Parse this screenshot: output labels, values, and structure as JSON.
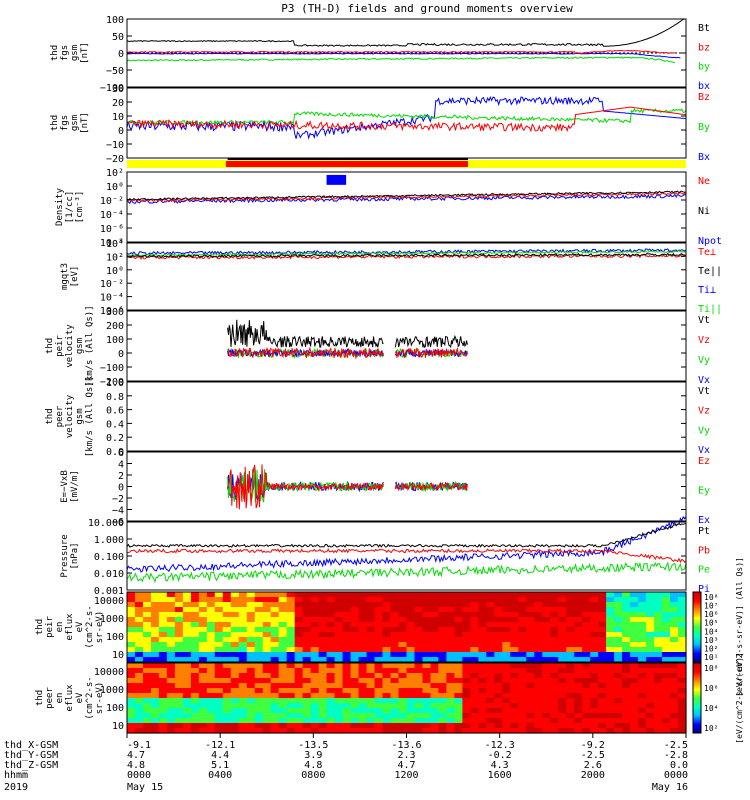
{
  "title": "P3 (TH-D) fields and ground moments overview",
  "colors": {
    "black": "#000000",
    "red": "#ff0000",
    "green": "#00dd00",
    "blue": "#0000ff",
    "yellow": "#ffff00"
  },
  "chart_data": [
    {
      "type": "line",
      "id": "p1",
      "ylabel": [
        "thd",
        "fgs",
        "gsm",
        "[nT]"
      ],
      "ylim": [
        -100,
        100
      ],
      "yticks": [
        "100",
        "50",
        "0",
        "−50",
        "−100"
      ],
      "legend": [
        {
          "name": "Bt",
          "color": "black"
        },
        {
          "name": "bz",
          "color": "red"
        },
        {
          "name": "by",
          "color": "green"
        },
        {
          "name": "bx",
          "color": "blue"
        }
      ]
    },
    {
      "type": "line",
      "id": "p2",
      "ylabel": [
        "thd",
        "fgs",
        "gsm",
        "[nT]"
      ],
      "ylim": [
        -25,
        30
      ],
      "yticks": [
        "30",
        "20",
        "10",
        "0",
        "−10",
        "−20"
      ],
      "legend": [
        {
          "name": "Bz",
          "color": "red"
        },
        {
          "name": "By",
          "color": "green"
        },
        {
          "name": "Bx",
          "color": "blue"
        }
      ]
    },
    {
      "type": "line",
      "id": "p3",
      "ylabel": [
        "Density",
        "[1/cc]",
        "[cm⁻³]"
      ],
      "yscale": "log",
      "yticks": [
        "10²",
        "10⁰",
        "10⁻²",
        "10⁻⁴",
        "10⁻⁶",
        "10⁻⁸"
      ],
      "legend": [
        {
          "name": "Ne",
          "color": "red"
        },
        {
          "name": "Ni",
          "color": "black"
        },
        {
          "name": "Npot",
          "color": "blue"
        }
      ]
    },
    {
      "type": "line",
      "id": "p4",
      "ylabel": [
        "mgqt3",
        "[eV]"
      ],
      "yscale": "log",
      "yticks": [
        "10⁴",
        "10²",
        "10⁰",
        "10⁻²",
        "10⁻⁴",
        "10⁻⁶"
      ],
      "legend": [
        {
          "name": "Te⊥",
          "color": "red"
        },
        {
          "name": "Te||",
          "color": "black"
        },
        {
          "name": "Ti⊥",
          "color": "blue"
        },
        {
          "name": "Ti||",
          "color": "green"
        }
      ]
    },
    {
      "type": "line",
      "id": "p5",
      "ylabel": [
        "thd",
        "peir",
        "velocity",
        "gsm",
        "[km/s (All Qs)]"
      ],
      "ylim": [
        -200,
        300
      ],
      "yticks": [
        "300",
        "200",
        "100",
        "0",
        "−100",
        "−200"
      ],
      "legend": [
        {
          "name": "Vt",
          "color": "black"
        },
        {
          "name": "Vz",
          "color": "red"
        },
        {
          "name": "Vy",
          "color": "green"
        },
        {
          "name": "Vx",
          "color": "blue"
        }
      ]
    },
    {
      "type": "line",
      "id": "p6",
      "ylabel": [
        "thd",
        "peer",
        "velocity",
        "gsm",
        "[km/s (All Qs)]"
      ],
      "ylim": [
        0,
        1
      ],
      "yticks": [
        "1.0",
        "0.8",
        "0.6",
        "0.4",
        "0.2",
        "0.0"
      ],
      "legend": [
        {
          "name": "Vt",
          "color": "black"
        },
        {
          "name": "Vz",
          "color": "red"
        },
        {
          "name": "Vy",
          "color": "green"
        },
        {
          "name": "Vx",
          "color": "blue"
        }
      ]
    },
    {
      "type": "line",
      "id": "p7",
      "ylabel": [
        "E=−VxB",
        "[mV/m]"
      ],
      "ylim": [
        -6,
        6
      ],
      "yticks": [
        "6",
        "4",
        "2",
        "0",
        "−2",
        "−4",
        "−6"
      ],
      "legend": [
        {
          "name": "Ez",
          "color": "red"
        },
        {
          "name": "Ey",
          "color": "green"
        },
        {
          "name": "Ex",
          "color": "blue"
        }
      ]
    },
    {
      "type": "line",
      "id": "p8",
      "ylabel": [
        "Pressure",
        "[nPa]"
      ],
      "yscale": "log",
      "yticks": [
        "10.000",
        "1.000",
        "0.100",
        "0.010",
        "0.001"
      ],
      "legend": [
        {
          "name": "Pt",
          "color": "black"
        },
        {
          "name": "Pb",
          "color": "red"
        },
        {
          "name": "Pe",
          "color": "green"
        },
        {
          "name": "Pi",
          "color": "blue"
        }
      ]
    },
    {
      "type": "heatmap",
      "id": "p9",
      "ylabel": [
        "thd",
        "peir",
        "en",
        "eflux",
        "eV",
        "(cm^2-s-",
        "sr-eV)"
      ],
      "yticks": [
        "10000",
        "1000",
        "100",
        "10"
      ],
      "colorbar_ticks": [
        "10⁸",
        "10⁷",
        "10⁶",
        "10⁵",
        "10⁴",
        "10³",
        "10²",
        "10¹"
      ]
    },
    {
      "type": "heatmap",
      "id": "p10",
      "ylabel": [
        "thd",
        "peer",
        "en",
        "eflux",
        "eV",
        "(cm^2-s-",
        "sr-eV)"
      ],
      "yticks": [
        "10000",
        "1000",
        "100",
        "10"
      ],
      "colorbar_ticks": [
        "10⁸",
        "10⁶",
        "10⁴",
        "10²"
      ]
    }
  ],
  "colorbar_label": "[eV/(cm^2-s-sr-eV)] (All Qs)]",
  "colorbar_label2": "[eV/(cm^2-s-sr-eV)]",
  "x_axis": {
    "row_labels": [
      "thd_X-GSM",
      "thd_Y-GSM",
      "thd_Z-GSM",
      "hhmm",
      "2019"
    ],
    "ticks": [
      {
        "x": "-9.1",
        "y": "4.7",
        "z": "4.8",
        "time": "0000",
        "date": "May 15"
      },
      {
        "x": "-12.1",
        "y": "4.4",
        "z": "5.1",
        "time": "0400",
        "date": ""
      },
      {
        "x": "-13.5",
        "y": "3.9",
        "z": "4.8",
        "time": "0800",
        "date": ""
      },
      {
        "x": "-13.6",
        "y": "2.3",
        "z": "4.7",
        "time": "1200",
        "date": ""
      },
      {
        "x": "-12.3",
        "y": "-0.2",
        "z": "4.3",
        "time": "1600",
        "date": ""
      },
      {
        "x": "-9.2",
        "y": "-2.5",
        "z": "2.6",
        "time": "2000",
        "date": ""
      },
      {
        "x": "-2.5",
        "y": "-2.8",
        "z": "0.0",
        "time": "0000",
        "date": "May 16"
      }
    ]
  }
}
